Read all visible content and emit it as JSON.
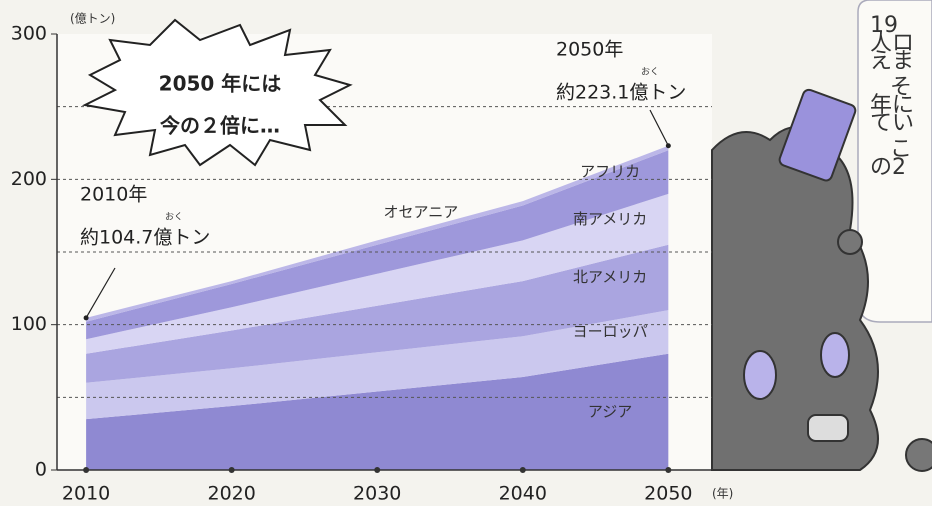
{
  "chart_data": {
    "type": "stacked-area",
    "x": [
      2010,
      2020,
      2030,
      2040,
      2050
    ],
    "xlim": [
      2008,
      2053
    ],
    "xticks": [
      2010,
      2020,
      2030,
      2040,
      2050
    ],
    "ylim": [
      0,
      300
    ],
    "yticks": [
      0,
      100,
      200,
      300
    ],
    "grid_lines": [
      50,
      100,
      150,
      200,
      250
    ],
    "y_unit": "(億トン)",
    "x_unit": "(年)",
    "series": [
      {
        "name": "アジア",
        "color": "#8f89d2",
        "values": [
          35,
          44,
          54,
          64,
          80
        ]
      },
      {
        "name": "ヨーロッパ",
        "color": "#cbc8ee",
        "values": [
          25,
          26,
          27,
          28,
          30
        ]
      },
      {
        "name": "北アメリカ",
        "color": "#aaa5e0",
        "values": [
          20,
          26,
          32,
          38,
          45
        ]
      },
      {
        "name": "南アメリカ",
        "color": "#d8d5f3",
        "values": [
          10,
          16,
          22,
          28,
          35
        ]
      },
      {
        "name": "アフリカ",
        "color": "#9e98db",
        "values": [
          12,
          16,
          20,
          24,
          30
        ]
      },
      {
        "name": "オセアニア",
        "color": "#bcb7e8",
        "values": [
          2.7,
          2,
          3,
          3,
          3.1
        ]
      }
    ],
    "annotations": [
      {
        "year": "2010年",
        "text": "約104.7億トン",
        "ruby": "おく",
        "x": 2010,
        "value": 104.7
      },
      {
        "year": "2050年",
        "text": "約223.1億トン",
        "ruby": "おく",
        "x": 2050,
        "value": 223.1
      }
    ],
    "burst": [
      "2050 年には",
      "今の２倍に…"
    ]
  },
  "side_text": [
    "19",
    "人ロ",
    "えま",
    "そ",
    "年に",
    "てい",
    "こ",
    "の2"
  ]
}
